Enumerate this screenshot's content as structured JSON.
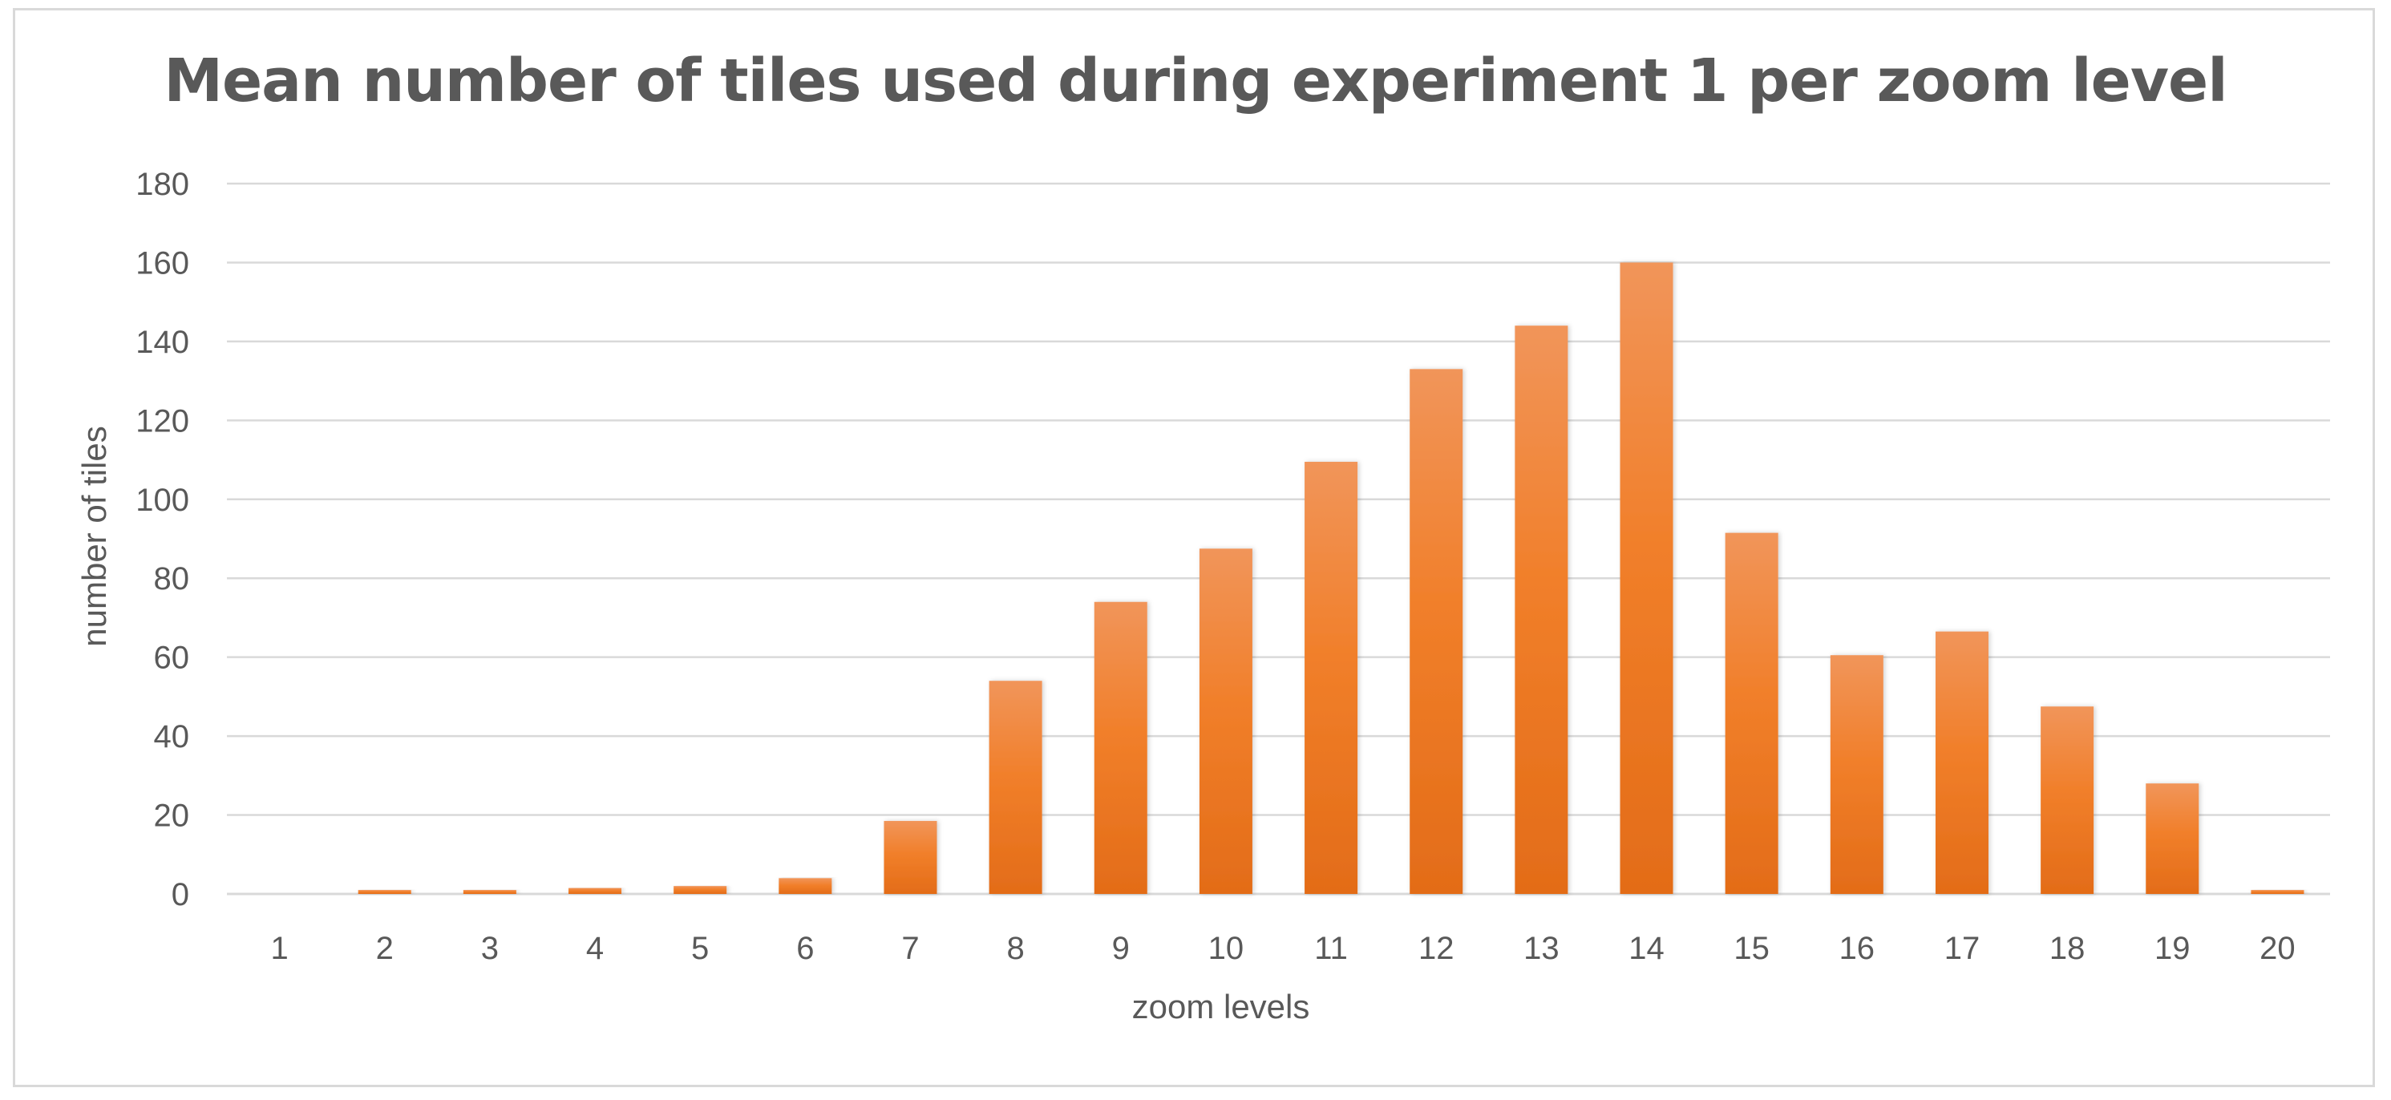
{
  "chart_data": {
    "type": "bar",
    "title": "Mean number of tiles used during experiment 1 per zoom level",
    "xlabel": "zoom levels",
    "ylabel": "number of tiles",
    "categories": [
      "1",
      "2",
      "3",
      "4",
      "5",
      "6",
      "7",
      "8",
      "9",
      "10",
      "11",
      "12",
      "13",
      "14",
      "15",
      "16",
      "17",
      "18",
      "19",
      "20"
    ],
    "values": [
      0,
      1,
      1,
      1.5,
      2,
      4,
      18.5,
      54,
      74,
      87.5,
      109.5,
      133,
      144,
      160,
      91.5,
      60.5,
      66.5,
      47.5,
      28,
      1
    ],
    "ylim": [
      0,
      180
    ],
    "yticks": [
      "0",
      "20",
      "40",
      "60",
      "80",
      "100",
      "120",
      "140",
      "160",
      "180"
    ],
    "grid": true,
    "legend": "none",
    "colors": {
      "bar_top": "#f1955a",
      "bar_mid": "#f17f2a",
      "bar_bottom": "#e36c18",
      "grid": "#d9d9d9",
      "text": "#595959"
    }
  }
}
